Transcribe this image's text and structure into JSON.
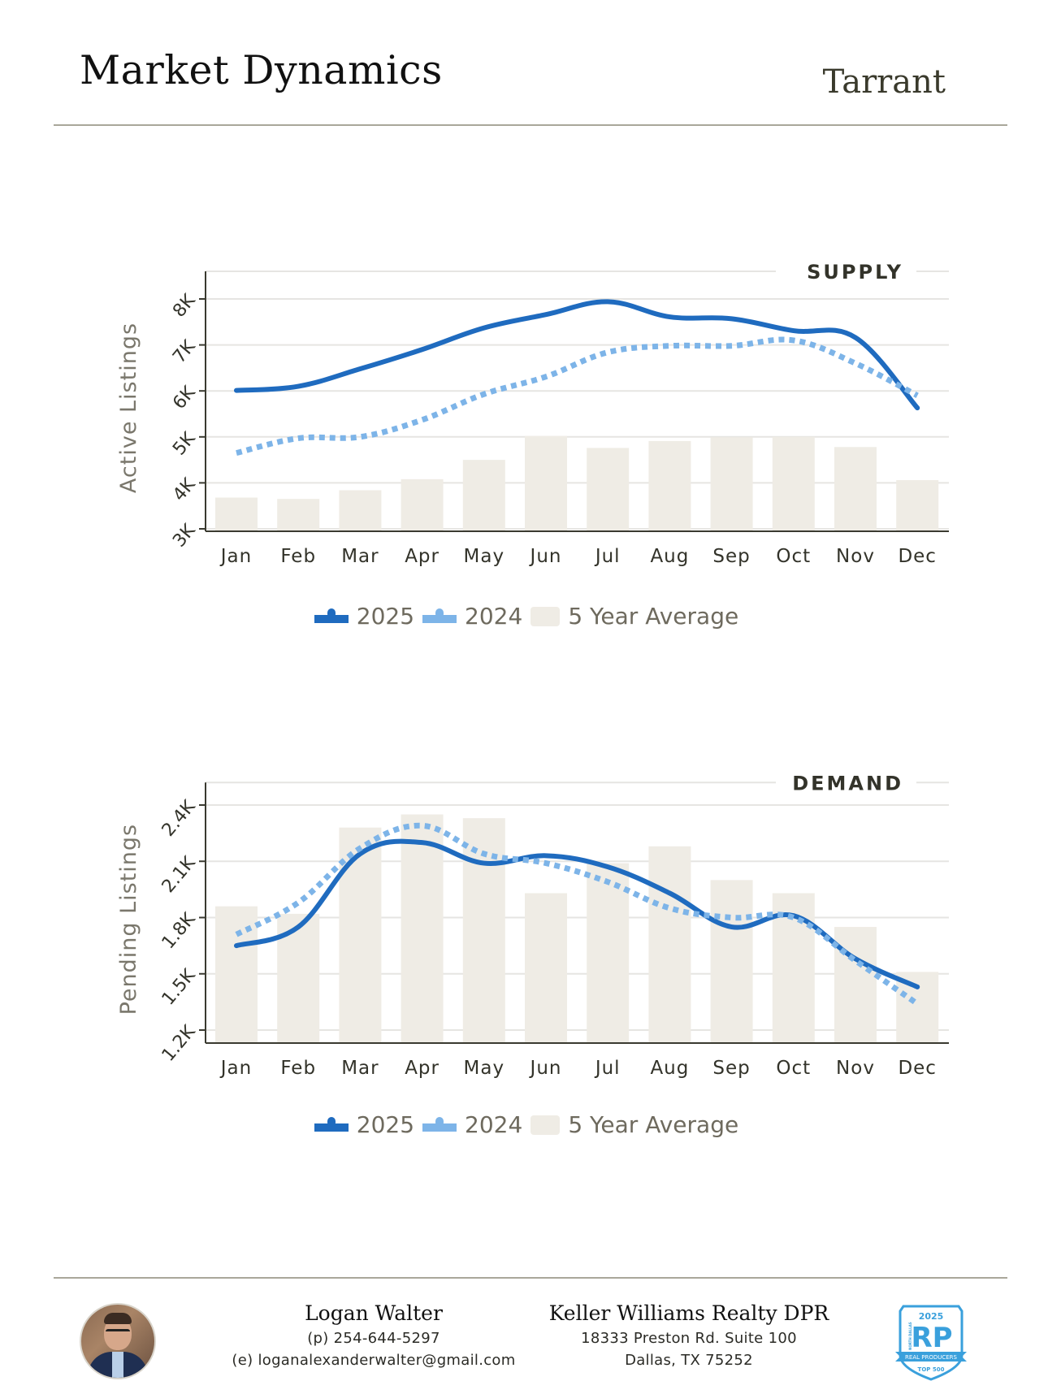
{
  "header": {
    "title": "Market Dynamics",
    "region": "Tarrant"
  },
  "legend": {
    "items": [
      {
        "label": "2025",
        "color": "#1f6bbf",
        "type": "line"
      },
      {
        "label": "2024",
        "color": "#7db4e8",
        "type": "line-dotted"
      },
      {
        "label": "5 Year Average",
        "color": "#efece5",
        "type": "bar"
      }
    ]
  },
  "colors": {
    "series_2025": "#1f6bbf",
    "series_2024": "#7db4e8",
    "bars": "#efece5",
    "grid": "#e6e5e2",
    "axis": "#3a3a30",
    "tick_text": "#33332a",
    "axis_title": "#7a776c",
    "section_label": "#33332a"
  },
  "chart_data": [
    {
      "type": "bar",
      "title": "SUPPLY",
      "xlabel": "",
      "ylabel": "Active Listings",
      "categories": [
        "Jan",
        "Feb",
        "Mar",
        "Apr",
        "May",
        "Jun",
        "Jul",
        "Aug",
        "Sep",
        "Oct",
        "Nov",
        "Dec"
      ],
      "ylim": [
        3000,
        8600
      ],
      "yticks": [
        3000,
        4000,
        5000,
        6000,
        7000,
        8000
      ],
      "ytick_labels": [
        "3K",
        "4K",
        "5K",
        "6K",
        "7K",
        "8K"
      ],
      "grid": true,
      "legend_position": "bottom",
      "series": [
        {
          "name": "5 Year Average",
          "kind": "bar",
          "values": [
            3680,
            3650,
            3840,
            4080,
            4500,
            5020,
            4760,
            4910,
            4990,
            5000,
            4780,
            4060
          ]
        },
        {
          "name": "2025",
          "kind": "line",
          "style": "solid",
          "values": [
            6010,
            6100,
            6480,
            6900,
            7370,
            7660,
            7940,
            7610,
            7570,
            7310,
            7160,
            5630
          ]
        },
        {
          "name": "2024",
          "kind": "line",
          "style": "dotted",
          "values": [
            4650,
            4970,
            5000,
            5370,
            5930,
            6310,
            6840,
            6980,
            6980,
            7100,
            6600,
            5900
          ]
        }
      ]
    },
    {
      "type": "bar",
      "title": "DEMAND",
      "xlabel": "",
      "ylabel": "Pending Listings",
      "categories": [
        "Jan",
        "Feb",
        "Mar",
        "Apr",
        "May",
        "Jun",
        "Jul",
        "Aug",
        "Sep",
        "Oct",
        "Nov",
        "Dec"
      ],
      "ylim": [
        1200,
        2520
      ],
      "yticks": [
        1200,
        1500,
        1800,
        2100,
        2400
      ],
      "ytick_labels": [
        "1.2K",
        "1.5K",
        "1.8K",
        "2.1K",
        "2.4K"
      ],
      "grid": true,
      "legend_position": "bottom",
      "series": [
        {
          "name": "5 Year Average",
          "kind": "bar",
          "values": [
            1860,
            1820,
            2280,
            2350,
            2330,
            1930,
            2090,
            2180,
            2000,
            1930,
            1750,
            1510
          ]
        },
        {
          "name": "2025",
          "kind": "line",
          "style": "solid",
          "values": [
            1650,
            1750,
            2140,
            2200,
            2090,
            2130,
            2070,
            1930,
            1750,
            1810,
            1580,
            1430
          ]
        },
        {
          "name": "2024",
          "kind": "line",
          "style": "dotted",
          "values": [
            1710,
            1880,
            2170,
            2290,
            2140,
            2090,
            1990,
            1850,
            1800,
            1800,
            1570,
            1340
          ]
        }
      ]
    }
  ],
  "footer": {
    "agent_name": "Logan Walter",
    "phone": "(p) 254-644-5297",
    "email": "(e) loganalexanderwalter@gmail.com",
    "company": "Keller Williams Realty DPR",
    "address_line1": "18333 Preston Rd. Suite 100",
    "address_line2": "Dallas, TX 75252",
    "badge": {
      "year": "2025",
      "letters": "RP",
      "side_text": "NORTH DALLAS",
      "ribbon": "REAL PRODUCERS",
      "bottom": "TOP 500",
      "color": "#3aa0dc"
    }
  }
}
